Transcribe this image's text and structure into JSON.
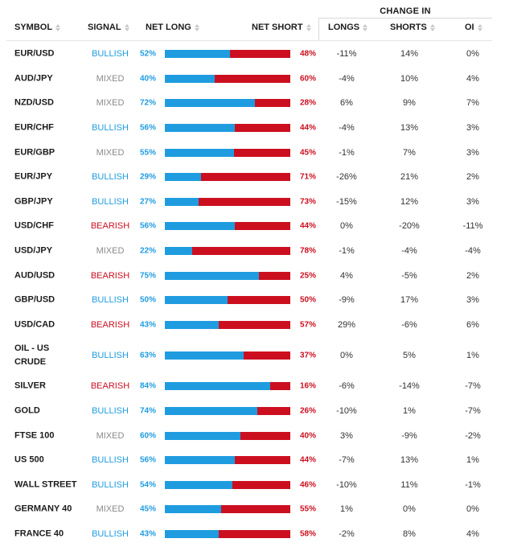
{
  "headers": {
    "change_in": "CHANGE IN",
    "symbol": "SYMBOL",
    "signal": "SIGNAL",
    "net_long": "NET LONG",
    "net_short": "NET SHORT",
    "longs": "LONGS",
    "shorts": "SHORTS",
    "oi": "OI"
  },
  "colors": {
    "long": "#1f9ce0",
    "short": "#cc0f1f",
    "mixed": "#8a8a8a"
  },
  "rows": [
    {
      "symbol": "EUR/USD",
      "signal": "BULLISH",
      "net_long": "52%",
      "net_short": "48%",
      "longs": "-11%",
      "shorts": "14%",
      "oi": "0%",
      "long_pct": 52
    },
    {
      "symbol": "AUD/JPY",
      "signal": "MIXED",
      "net_long": "40%",
      "net_short": "60%",
      "longs": "-4%",
      "shorts": "10%",
      "oi": "4%",
      "long_pct": 40
    },
    {
      "symbol": "NZD/USD",
      "signal": "MIXED",
      "net_long": "72%",
      "net_short": "28%",
      "longs": "6%",
      "shorts": "9%",
      "oi": "7%",
      "long_pct": 72
    },
    {
      "symbol": "EUR/CHF",
      "signal": "BULLISH",
      "net_long": "56%",
      "net_short": "44%",
      "longs": "-4%",
      "shorts": "13%",
      "oi": "3%",
      "long_pct": 56
    },
    {
      "symbol": "EUR/GBP",
      "signal": "MIXED",
      "net_long": "55%",
      "net_short": "45%",
      "longs": "-1%",
      "shorts": "7%",
      "oi": "3%",
      "long_pct": 55
    },
    {
      "symbol": "EUR/JPY",
      "signal": "BULLISH",
      "net_long": "29%",
      "net_short": "71%",
      "longs": "-26%",
      "shorts": "21%",
      "oi": "2%",
      "long_pct": 29
    },
    {
      "symbol": "GBP/JPY",
      "signal": "BULLISH",
      "net_long": "27%",
      "net_short": "73%",
      "longs": "-15%",
      "shorts": "12%",
      "oi": "3%",
      "long_pct": 27
    },
    {
      "symbol": "USD/CHF",
      "signal": "BEARISH",
      "net_long": "56%",
      "net_short": "44%",
      "longs": "0%",
      "shorts": "-20%",
      "oi": "-11%",
      "long_pct": 56
    },
    {
      "symbol": "USD/JPY",
      "signal": "MIXED",
      "net_long": "22%",
      "net_short": "78%",
      "longs": "-1%",
      "shorts": "-4%",
      "oi": "-4%",
      "long_pct": 22
    },
    {
      "symbol": "AUD/USD",
      "signal": "BEARISH",
      "net_long": "75%",
      "net_short": "25%",
      "longs": "4%",
      "shorts": "-5%",
      "oi": "2%",
      "long_pct": 75
    },
    {
      "symbol": "GBP/USD",
      "signal": "BULLISH",
      "net_long": "50%",
      "net_short": "50%",
      "longs": "-9%",
      "shorts": "17%",
      "oi": "3%",
      "long_pct": 50
    },
    {
      "symbol": "USD/CAD",
      "signal": "BEARISH",
      "net_long": "43%",
      "net_short": "57%",
      "longs": "29%",
      "shorts": "-6%",
      "oi": "6%",
      "long_pct": 43
    },
    {
      "symbol": "OIL - US CRUDE",
      "signal": "BULLISH",
      "net_long": "63%",
      "net_short": "37%",
      "longs": "0%",
      "shorts": "5%",
      "oi": "1%",
      "long_pct": 63
    },
    {
      "symbol": "SILVER",
      "signal": "BEARISH",
      "net_long": "84%",
      "net_short": "16%",
      "longs": "-6%",
      "shorts": "-14%",
      "oi": "-7%",
      "long_pct": 84
    },
    {
      "symbol": "GOLD",
      "signal": "BULLISH",
      "net_long": "74%",
      "net_short": "26%",
      "longs": "-10%",
      "shorts": "1%",
      "oi": "-7%",
      "long_pct": 74
    },
    {
      "symbol": "FTSE 100",
      "signal": "MIXED",
      "net_long": "60%",
      "net_short": "40%",
      "longs": "3%",
      "shorts": "-9%",
      "oi": "-2%",
      "long_pct": 60
    },
    {
      "symbol": "US 500",
      "signal": "BULLISH",
      "net_long": "56%",
      "net_short": "44%",
      "longs": "-7%",
      "shorts": "13%",
      "oi": "1%",
      "long_pct": 56
    },
    {
      "symbol": "WALL STREET",
      "signal": "BULLISH",
      "net_long": "54%",
      "net_short": "46%",
      "longs": "-10%",
      "shorts": "11%",
      "oi": "-1%",
      "long_pct": 54
    },
    {
      "symbol": "GERMANY 40",
      "signal": "MIXED",
      "net_long": "45%",
      "net_short": "55%",
      "longs": "1%",
      "shorts": "0%",
      "oi": "0%",
      "long_pct": 45
    },
    {
      "symbol": "FRANCE 40",
      "signal": "BULLISH",
      "net_long": "43%",
      "net_short": "58%",
      "longs": "-2%",
      "shorts": "8%",
      "oi": "4%",
      "long_pct": 43
    }
  ]
}
